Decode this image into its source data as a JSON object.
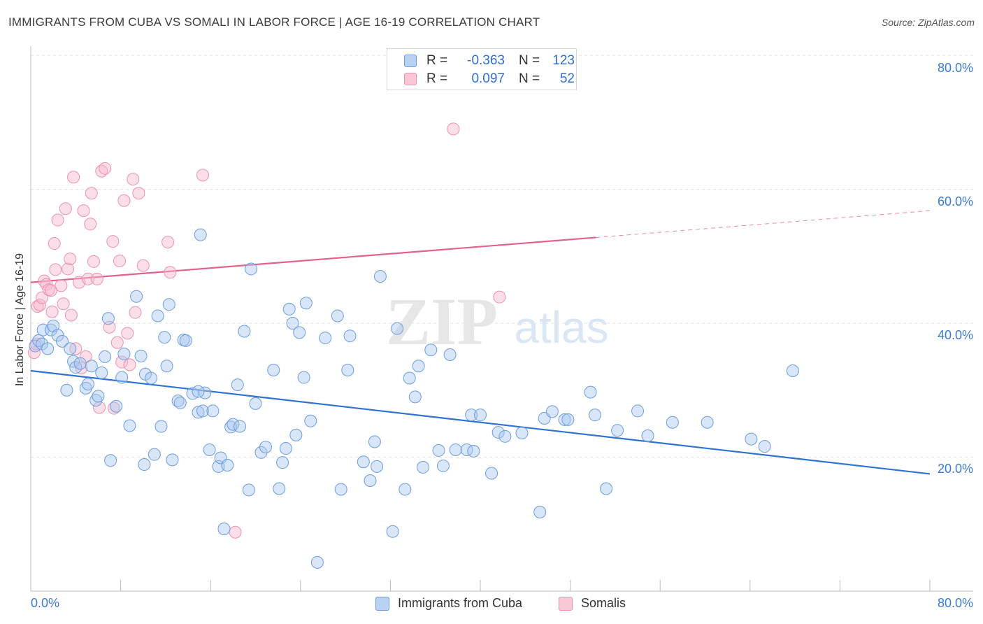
{
  "title": "IMMIGRANTS FROM CUBA VS SOMALI IN LABOR FORCE | AGE 16-19 CORRELATION CHART",
  "source": "Source: ZipAtlas.com",
  "watermark": {
    "zip": "ZIP",
    "atlas": "atlas"
  },
  "legend": {
    "rows": [
      {
        "r_label": "R =",
        "r_value": "-0.363",
        "n_label": "N =",
        "n_value": "123",
        "color": "#6b9ce0"
      },
      {
        "r_label": "R =",
        "r_value": "0.097",
        "n_label": "N =",
        "n_value": "52",
        "color": "#ec92ae"
      }
    ]
  },
  "bottom_legend": {
    "series1": "Immigrants from Cuba",
    "series2": "Somalis"
  },
  "axis": {
    "ylabel": "In Labor Force | Age 16-19",
    "x_min_label": "0.0%",
    "x_max_label": "80.0%",
    "y_ticks": [
      "20.0%",
      "40.0%",
      "60.0%",
      "80.0%"
    ]
  },
  "chart_data": {
    "type": "scatter",
    "title": "IMMIGRANTS FROM CUBA VS SOMALI IN LABOR FORCE | AGE 16-19 CORRELATION CHART",
    "xlabel": "",
    "ylabel": "In Labor Force | Age 16-19",
    "xlim": [
      0,
      80
    ],
    "ylim": [
      0,
      80
    ],
    "grid": true,
    "legend_placement": "top-center",
    "series": [
      {
        "name": "Immigrants from Cuba",
        "color": "#6b9ce0",
        "trend": {
          "x": [
            0,
            80
          ],
          "y": [
            32.9,
            17.5
          ],
          "style": "solid"
        },
        "points": [
          [
            0.4,
            36.6
          ],
          [
            0.7,
            37.4
          ],
          [
            1.0,
            36.9
          ],
          [
            1.1,
            39.0
          ],
          [
            1.5,
            36.2
          ],
          [
            1.8,
            39.0
          ],
          [
            2.0,
            39.6
          ],
          [
            2.4,
            38.2
          ],
          [
            2.8,
            37.3
          ],
          [
            3.2,
            30.0
          ],
          [
            3.5,
            36.2
          ],
          [
            3.8,
            34.3
          ],
          [
            4.0,
            33.4
          ],
          [
            4.4,
            34.0
          ],
          [
            4.9,
            30.3
          ],
          [
            5.1,
            30.9
          ],
          [
            5.4,
            33.6
          ],
          [
            5.8,
            28.5
          ],
          [
            6.0,
            29.1
          ],
          [
            6.3,
            32.6
          ],
          [
            6.6,
            35.0
          ],
          [
            6.9,
            40.7
          ],
          [
            7.1,
            19.5
          ],
          [
            7.6,
            27.6
          ],
          [
            8.1,
            31.9
          ],
          [
            8.3,
            35.4
          ],
          [
            8.8,
            24.7
          ],
          [
            9.4,
            44.0
          ],
          [
            9.8,
            35.1
          ],
          [
            10.1,
            18.9
          ],
          [
            10.2,
            32.4
          ],
          [
            10.7,
            31.8
          ],
          [
            11.0,
            20.4
          ],
          [
            11.3,
            41.1
          ],
          [
            11.6,
            24.6
          ],
          [
            11.9,
            37.9
          ],
          [
            12.1,
            33.6
          ],
          [
            12.3,
            42.8
          ],
          [
            12.6,
            19.6
          ],
          [
            13.1,
            28.4
          ],
          [
            13.3,
            28.1
          ],
          [
            13.6,
            37.5
          ],
          [
            13.8,
            37.4
          ],
          [
            14.4,
            29.5
          ],
          [
            14.9,
            26.7
          ],
          [
            15.1,
            53.2
          ],
          [
            15.3,
            26.9
          ],
          [
            15.5,
            29.6
          ],
          [
            15.9,
            21.1
          ],
          [
            16.2,
            26.9
          ],
          [
            16.7,
            18.6
          ],
          [
            16.9,
            19.9
          ],
          [
            17.2,
            9.3
          ],
          [
            17.5,
            18.8
          ],
          [
            17.8,
            24.5
          ],
          [
            18.0,
            24.9
          ],
          [
            18.4,
            30.8
          ],
          [
            18.6,
            24.6
          ],
          [
            19.0,
            38.8
          ],
          [
            19.4,
            15.1
          ],
          [
            19.6,
            48.1
          ],
          [
            20.0,
            28.0
          ],
          [
            20.5,
            20.7
          ],
          [
            20.9,
            21.5
          ],
          [
            21.6,
            33.0
          ],
          [
            22.1,
            15.3
          ],
          [
            22.4,
            19.2
          ],
          [
            22.7,
            21.3
          ],
          [
            23.0,
            42.1
          ],
          [
            23.3,
            40.0
          ],
          [
            23.6,
            23.3
          ],
          [
            23.9,
            38.6
          ],
          [
            24.3,
            31.9
          ],
          [
            24.9,
            25.4
          ],
          [
            25.5,
            4.3
          ],
          [
            26.2,
            37.8
          ],
          [
            27.3,
            41.1
          ],
          [
            27.6,
            15.2
          ],
          [
            28.2,
            33.0
          ],
          [
            28.4,
            38.1
          ],
          [
            29.6,
            19.3
          ],
          [
            30.2,
            16.5
          ],
          [
            30.6,
            22.3
          ],
          [
            30.8,
            18.6
          ],
          [
            31.1,
            47.0
          ],
          [
            32.2,
            8.9
          ],
          [
            32.6,
            39.2
          ],
          [
            33.3,
            15.2
          ],
          [
            33.7,
            31.8
          ],
          [
            34.5,
            33.6
          ],
          [
            34.9,
            18.5
          ],
          [
            35.6,
            36.0
          ],
          [
            36.3,
            21.0
          ],
          [
            36.7,
            18.7
          ],
          [
            37.3,
            35.3
          ],
          [
            37.8,
            21.1
          ],
          [
            38.8,
            21.1
          ],
          [
            39.2,
            26.3
          ],
          [
            39.4,
            20.9
          ],
          [
            40.0,
            26.3
          ],
          [
            41.0,
            17.6
          ],
          [
            41.6,
            23.7
          ],
          [
            42.2,
            23.1
          ],
          [
            43.7,
            23.6
          ],
          [
            45.3,
            11.8
          ],
          [
            45.7,
            25.8
          ],
          [
            46.4,
            26.8
          ],
          [
            47.5,
            25.6
          ],
          [
            47.8,
            25.6
          ],
          [
            49.8,
            29.7
          ],
          [
            50.2,
            26.3
          ],
          [
            51.2,
            15.3
          ],
          [
            52.2,
            24.0
          ],
          [
            54.0,
            26.9
          ],
          [
            54.9,
            23.2
          ],
          [
            57.1,
            25.2
          ],
          [
            60.2,
            25.2
          ],
          [
            64.1,
            22.7
          ],
          [
            65.3,
            21.6
          ],
          [
            67.8,
            32.9
          ],
          [
            24.5,
            43.0
          ],
          [
            14.9,
            29.8
          ],
          [
            34.2,
            29.0
          ]
        ]
      },
      {
        "name": "Somalis",
        "color": "#ec92ae",
        "trend": {
          "x": [
            0,
            50.3,
            80
          ],
          "y": [
            46.1,
            52.8,
            56.8
          ],
          "style": "solid-then-dashed"
        },
        "points": [
          [
            0.3,
            35.6
          ],
          [
            0.5,
            36.9
          ],
          [
            0.6,
            42.5
          ],
          [
            0.8,
            42.7
          ],
          [
            1.0,
            43.8
          ],
          [
            1.2,
            46.3
          ],
          [
            1.4,
            45.8
          ],
          [
            1.6,
            45.0
          ],
          [
            1.8,
            44.9
          ],
          [
            1.9,
            41.7
          ],
          [
            2.1,
            51.9
          ],
          [
            2.2,
            48.0
          ],
          [
            2.4,
            55.4
          ],
          [
            2.7,
            45.6
          ],
          [
            2.9,
            42.9
          ],
          [
            3.1,
            57.1
          ],
          [
            3.3,
            48.1
          ],
          [
            3.5,
            49.6
          ],
          [
            3.6,
            41.2
          ],
          [
            3.8,
            61.8
          ],
          [
            4.0,
            36.2
          ],
          [
            4.3,
            46.1
          ],
          [
            4.5,
            33.3
          ],
          [
            4.7,
            56.8
          ],
          [
            4.9,
            35.0
          ],
          [
            5.1,
            46.6
          ],
          [
            5.3,
            54.8
          ],
          [
            5.4,
            59.4
          ],
          [
            5.6,
            49.2
          ],
          [
            5.9,
            46.6
          ],
          [
            6.1,
            27.4
          ],
          [
            6.3,
            62.7
          ],
          [
            6.6,
            63.1
          ],
          [
            7.0,
            39.4
          ],
          [
            7.3,
            52.2
          ],
          [
            7.4,
            27.3
          ],
          [
            7.7,
            37.1
          ],
          [
            7.9,
            49.3
          ],
          [
            8.1,
            34.2
          ],
          [
            8.3,
            58.3
          ],
          [
            8.6,
            38.5
          ],
          [
            8.8,
            33.8
          ],
          [
            9.1,
            61.5
          ],
          [
            9.3,
            41.6
          ],
          [
            9.6,
            59.4
          ],
          [
            10.0,
            48.6
          ],
          [
            12.2,
            52.1
          ],
          [
            12.4,
            47.6
          ],
          [
            15.3,
            62.1
          ],
          [
            18.2,
            8.8
          ],
          [
            37.6,
            69.0
          ],
          [
            41.7,
            43.9
          ]
        ]
      }
    ]
  }
}
